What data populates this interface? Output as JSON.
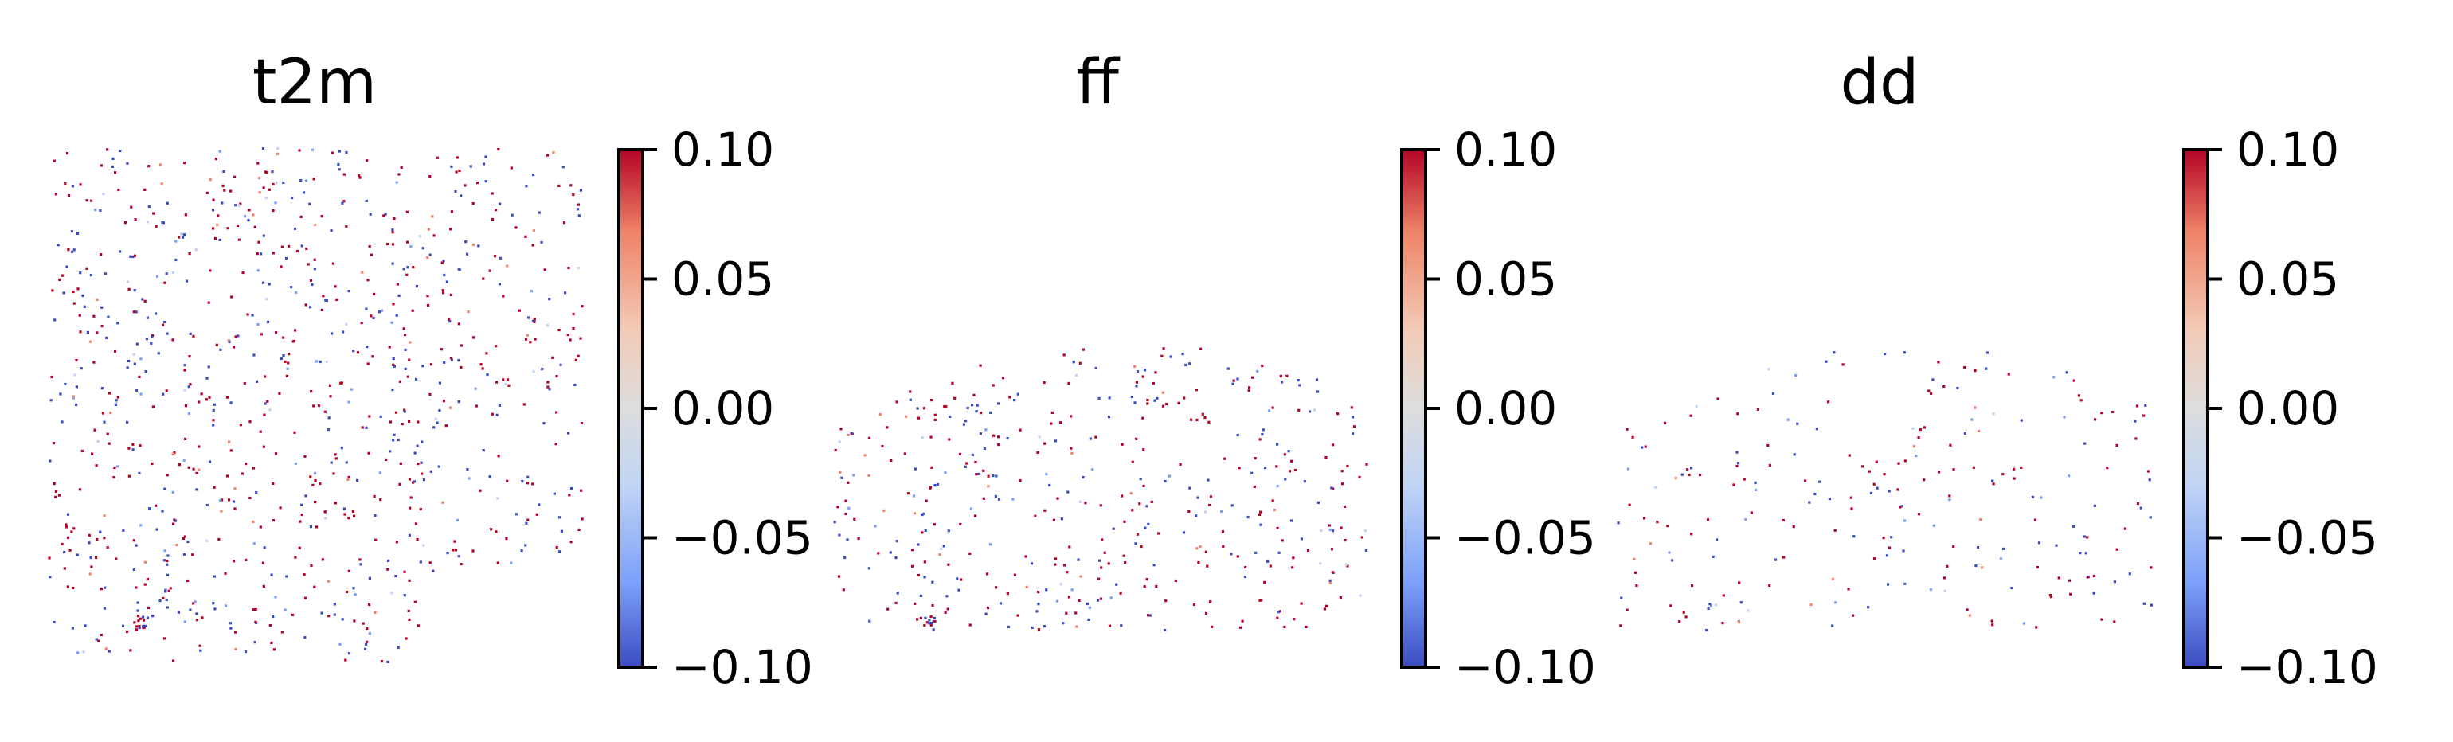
{
  "chart_data": [
    {
      "type": "scatter",
      "title": "t2m",
      "colorbar": {
        "cmap": "coolwarm",
        "range": [
          -0.1,
          0.1
        ],
        "ticks": [
          0.1,
          0.05,
          0.0,
          -0.05,
          -0.1
        ],
        "tick_labels": [
          "0.10",
          "0.05",
          "0.00",
          "−0.05",
          "−0.10"
        ],
        "colors": [
          "#3b4cc0",
          "#7b9ff9",
          "#c0d4f5",
          "#dddddd",
          "#f2cbb7",
          "#ee8468",
          "#b40426"
        ]
      },
      "grid": false,
      "axes_visible": false,
      "point_density": "dense"
    },
    {
      "type": "scatter",
      "title": "ff",
      "colorbar": {
        "cmap": "coolwarm",
        "range": [
          -0.1,
          0.1
        ],
        "ticks": [
          0.1,
          0.05,
          0.0,
          -0.05,
          -0.1
        ],
        "tick_labels": [
          "0.10",
          "0.05",
          "0.00",
          "−0.05",
          "−0.10"
        ],
        "colors": [
          "#3b4cc0",
          "#7b9ff9",
          "#c0d4f5",
          "#dddddd",
          "#f2cbb7",
          "#ee8468",
          "#b40426"
        ]
      },
      "grid": false,
      "axes_visible": false,
      "point_density": "medium"
    },
    {
      "type": "scatter",
      "title": "dd",
      "colorbar": {
        "cmap": "coolwarm",
        "range": [
          -0.1,
          0.1
        ],
        "ticks": [
          0.1,
          0.05,
          0.0,
          -0.05,
          -0.1
        ],
        "tick_labels": [
          "0.10",
          "0.05",
          "0.00",
          "−0.05",
          "−0.10"
        ],
        "colors": [
          "#3b4cc0",
          "#7b9ff9",
          "#c0d4f5",
          "#dddddd",
          "#f2cbb7",
          "#ee8468",
          "#b40426"
        ]
      },
      "grid": false,
      "axes_visible": false,
      "point_density": "sparse"
    }
  ]
}
